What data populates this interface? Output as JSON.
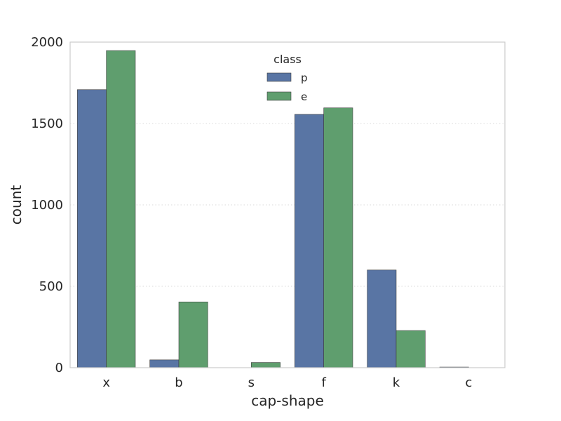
{
  "chart_data": {
    "type": "bar",
    "title": "",
    "xlabel": "cap-shape",
    "ylabel": "count",
    "categories": [
      "x",
      "b",
      "s",
      "f",
      "k",
      "c"
    ],
    "series": [
      {
        "name": "p",
        "color": "#5975a4",
        "values": [
          1708,
          48,
          0,
          1556,
          600,
          4
        ]
      },
      {
        "name": "e",
        "color": "#5f9e6e",
        "values": [
          1948,
          404,
          32,
          1596,
          228,
          0
        ]
      }
    ],
    "ylim": [
      0,
      2000
    ],
    "yticks": [
      0,
      500,
      1000,
      1500,
      2000
    ],
    "grid": "horizontal dotted",
    "legend": {
      "title": "class",
      "placement": "top-center"
    }
  }
}
